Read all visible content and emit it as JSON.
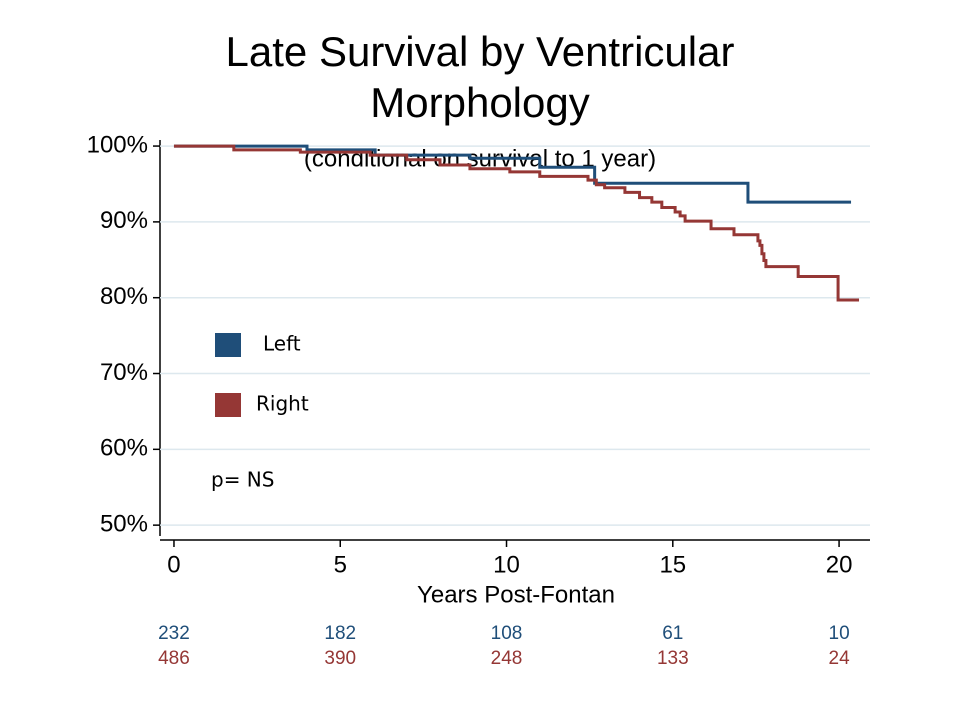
{
  "chart_data": {
    "type": "step",
    "title": [
      "Late Survival by Ventricular",
      "Morphology"
    ],
    "subtitle": "(conditional on survival to 1 year)",
    "x_label": "Years Post-Fontan",
    "annotation": "p= NS",
    "xlim": [
      -0.42,
      20.93
    ],
    "ylim": [
      48.7,
      100.8
    ],
    "xticks": [
      0,
      5,
      10,
      15,
      20
    ],
    "yticks": [
      {
        "value": 50,
        "label": "50%"
      },
      {
        "value": 60,
        "label": "60%"
      },
      {
        "value": 70,
        "label": "70%"
      },
      {
        "value": 80,
        "label": "80%"
      },
      {
        "value": 90,
        "label": "90%"
      },
      {
        "value": 100,
        "label": "100%"
      }
    ],
    "grid": true,
    "series": [
      {
        "name": "Left",
        "color": "#1f4e79",
        "x": [
          0,
          4.0,
          6.05,
          8.9,
          11.0,
          12.65,
          17.26,
          20.36
        ],
        "values": [
          100,
          99.5,
          98.8,
          98.4,
          97.2,
          95.1,
          92.6,
          92.6
        ],
        "at_risk": [
          232,
          182,
          108,
          61,
          10
        ]
      },
      {
        "name": "Right",
        "color": "#953735",
        "x": [
          0,
          1.8,
          3.8,
          5.9,
          7.0,
          8.0,
          8.9,
          10.1,
          11.0,
          12.45,
          12.7,
          12.95,
          13.56,
          14.0,
          14.37,
          14.67,
          15.07,
          15.22,
          15.37,
          16.15,
          16.84,
          17.56,
          17.62,
          17.68,
          17.74,
          17.8,
          18.77,
          19.97,
          20.6
        ],
        "values": [
          100,
          99.5,
          99.2,
          98.8,
          98.2,
          97.5,
          97.0,
          96.6,
          96.0,
          95.5,
          94.9,
          94.5,
          93.9,
          93.2,
          92.6,
          91.9,
          91.3,
          90.8,
          90.1,
          89.1,
          88.3,
          87.5,
          86.9,
          85.8,
          84.9,
          84.1,
          82.8,
          79.7,
          79.7
        ],
        "at_risk": [
          486,
          390,
          248,
          133,
          24
        ]
      }
    ]
  }
}
